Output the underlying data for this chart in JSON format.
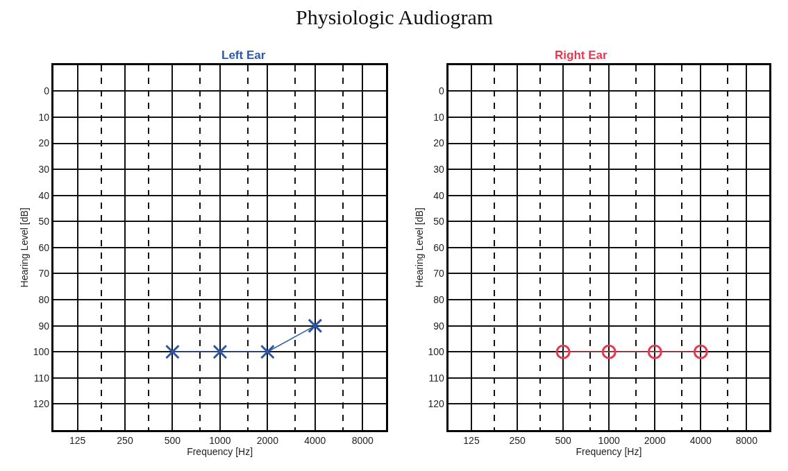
{
  "chart_data": [
    {
      "type": "line",
      "title": "Left Ear",
      "xlabel": "Frequency [Hz]",
      "ylabel": "Hearing Level [dB]",
      "annotations": [
        "Physiologic Audiogram"
      ],
      "x": [
        500,
        1000,
        2000,
        4000
      ],
      "series": [
        {
          "color": "#2b57a8",
          "values": [
            100,
            100,
            100,
            90
          ]
        }
      ],
      "marker": "cross",
      "log": "x",
      "grid": true,
      "xlim": [
        88,
        11300
      ],
      "xticks": [
        125,
        {
          "value": 177,
          "label": null
        },
        250,
        {
          "value": 354,
          "label": null
        },
        500,
        {
          "value": 750,
          "label": null
        },
        1000,
        {
          "value": 1500,
          "label": null
        },
        2000,
        {
          "value": 3000,
          "label": null
        },
        4000,
        {
          "value": 6000,
          "label": null
        },
        8000
      ],
      "ylim": [
        130,
        -10
      ],
      "yticks": [
        0,
        10,
        20,
        30,
        40,
        50,
        60,
        70,
        80,
        90,
        100,
        110,
        120
      ]
    },
    {
      "type": "line",
      "title": "Right Ear",
      "xlabel": "Frequency [Hz]",
      "ylabel": "Hearing Level [dB]",
      "x": [
        500,
        1000,
        2000,
        4000
      ],
      "series": [
        {
          "color": "#e8384f",
          "values": [
            100,
            100,
            100,
            100
          ]
        }
      ],
      "marker": "circle",
      "log": "x",
      "grid": true,
      "xlim": [
        88,
        11300
      ],
      "xticks": [
        125,
        {
          "value": 177,
          "label": null
        },
        250,
        {
          "value": 354,
          "label": null
        },
        500,
        {
          "value": 750,
          "label": null
        },
        1000,
        {
          "value": 1500,
          "label": null
        },
        2000,
        {
          "value": 3000,
          "label": null
        },
        4000,
        {
          "value": 6000,
          "label": null
        },
        8000
      ],
      "ylim": [
        130,
        -10
      ],
      "yticks": [
        0,
        10,
        20,
        30,
        40,
        50,
        60,
        70,
        80,
        90,
        100,
        110,
        120
      ]
    }
  ]
}
